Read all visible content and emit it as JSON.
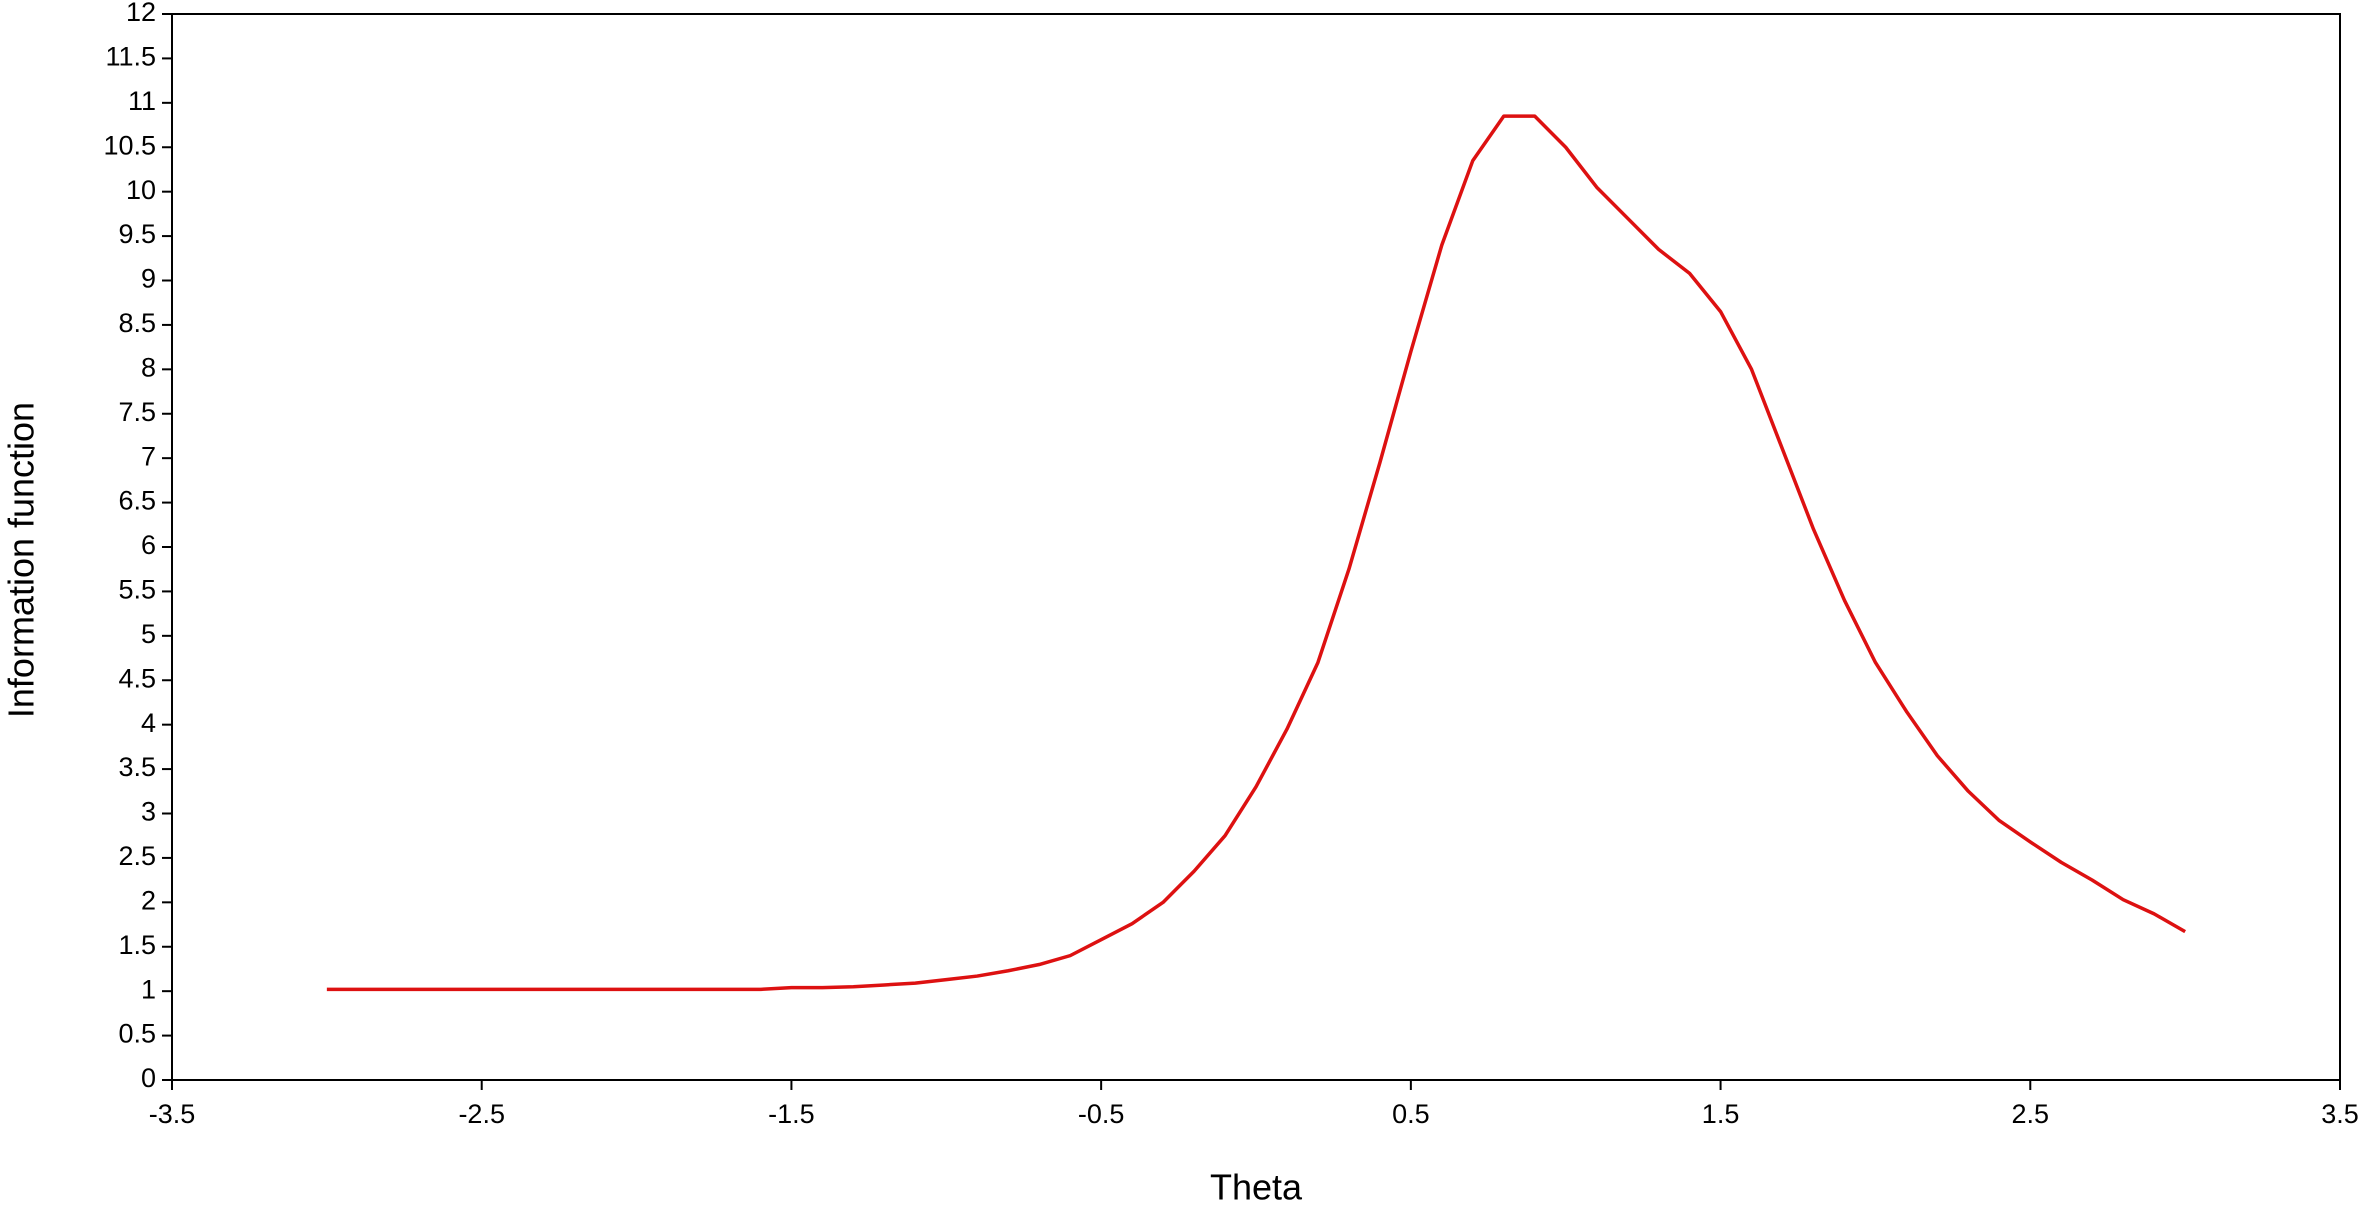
{
  "chart_data": {
    "type": "line",
    "x_label": "Theta",
    "y_label": "Information function",
    "x": [
      -3,
      -2.9,
      -2.8,
      -2.7,
      -2.6,
      -2.5,
      -2.4,
      -2.3,
      -2.2,
      -2.1,
      -2,
      -1.9,
      -1.8,
      -1.7,
      -1.6,
      -1.5,
      -1.4,
      -1.3,
      -1.2,
      -1.1,
      -1,
      -0.9,
      -0.8,
      -0.7,
      -0.6,
      -0.5,
      -0.4,
      -0.3,
      -0.2,
      -0.1,
      0,
      0.1,
      0.2,
      0.3,
      0.4,
      0.5,
      0.6,
      0.7,
      0.8,
      0.9,
      1,
      1.1,
      1.2,
      1.3,
      1.4,
      1.5,
      1.6,
      1.7,
      1.8,
      1.9,
      2,
      2.1,
      2.2,
      2.3,
      2.4,
      2.5,
      2.6,
      2.7,
      2.8,
      2.9,
      3
    ],
    "values": [
      1.02,
      1.02,
      1.02,
      1.02,
      1.02,
      1.02,
      1.02,
      1.02,
      1.02,
      1.02,
      1.02,
      1.02,
      1.02,
      1.02,
      1.02,
      1.04,
      1.04,
      1.05,
      1.07,
      1.09,
      1.13,
      1.17,
      1.23,
      1.3,
      1.4,
      1.58,
      1.76,
      2.0,
      2.35,
      2.75,
      3.3,
      3.95,
      4.7,
      5.75,
      6.95,
      8.2,
      9.4,
      10.35,
      10.85,
      10.85,
      10.5,
      10.05,
      9.7,
      9.35,
      9.08,
      8.65,
      8.0,
      7.1,
      6.2,
      5.4,
      4.7,
      4.15,
      3.65,
      3.25,
      2.92,
      2.68,
      2.45,
      2.25,
      2.03,
      1.87,
      1.67
    ],
    "color": "#dd1111",
    "xlim": [
      -3.5,
      3.5
    ],
    "xticks": [
      -3.5,
      -2.5,
      -1.5,
      -0.5,
      0.5,
      1.5,
      2.5,
      3.5
    ],
    "ylim": [
      0,
      12
    ],
    "yticks": [
      0,
      0.5,
      1,
      1.5,
      2,
      2.5,
      3,
      3.5,
      4,
      4.5,
      5,
      5.5,
      6,
      6.5,
      7,
      7.5,
      8,
      8.5,
      9,
      9.5,
      10,
      10.5,
      11,
      11.5,
      12
    ],
    "grid": false
  }
}
